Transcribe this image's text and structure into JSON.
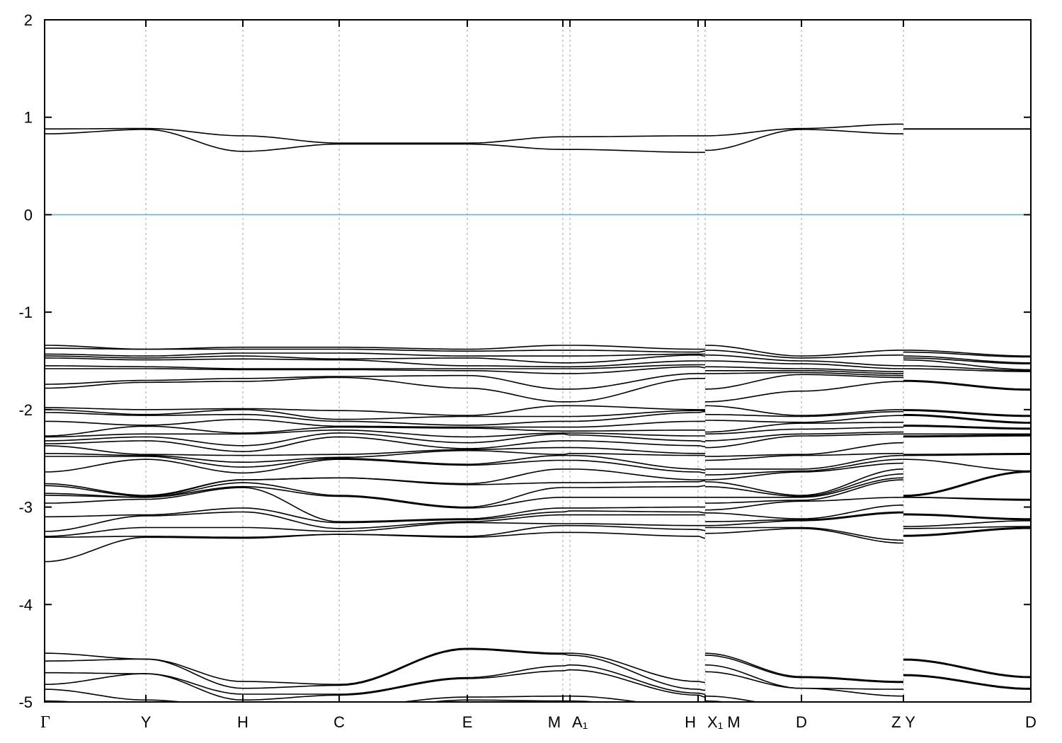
{
  "chart_data": {
    "type": "line",
    "title": "",
    "xlabel": "",
    "ylabel": "",
    "ylim": [
      -5,
      2
    ],
    "yticks": [
      2,
      1,
      0,
      -1,
      -2,
      -3,
      -4,
      -5
    ],
    "grid": "vertical dashed lines at high-symmetry points",
    "fermi_level": 0,
    "fermi_color": "#56b4e9",
    "band_color": "#000000",
    "kpoints": [
      {
        "label": "Γ",
        "k": 0.0
      },
      {
        "label": "Y",
        "k": 0.1027
      },
      {
        "label": "H",
        "k": 0.201
      },
      {
        "label": "C",
        "k": 0.2987
      },
      {
        "label": "E",
        "k": 0.4286
      },
      {
        "label": "M",
        "k": 0.5255
      },
      {
        "label": "A₁",
        "k": 0.5327
      },
      {
        "label": "H",
        "k": 0.6626
      },
      {
        "label": "X₁ M",
        "k": 0.6698
      },
      {
        "label": "D",
        "k": 0.7674
      },
      {
        "label": "Z Y",
        "k": 0.8708
      },
      {
        "label": "D",
        "k": 1.0
      }
    ],
    "segments": [
      {
        "nodes": [
          0,
          1,
          2,
          3,
          4,
          5,
          6,
          7,
          8
        ],
        "energies": [
          [
            0.88,
            0.83,
            -1.34,
            -1.37,
            -1.43,
            -1.45,
            -1.47,
            -1.55,
            -1.58,
            -1.74,
            -1.78,
            -1.98,
            -2.0,
            -2.03,
            -2.12,
            -2.27,
            -2.28,
            -2.32,
            -2.35,
            -2.37,
            -2.45,
            -2.48,
            -2.64,
            -2.76,
            -2.78,
            -2.86,
            -2.88,
            -2.96,
            -3.1,
            -3.25,
            -3.3,
            -3.31,
            -3.56,
            -4.5,
            -4.58,
            -4.7,
            -4.82,
            -4.87,
            -4.99
          ],
          [
            0.885,
            0.875,
            -1.38,
            -1.38,
            -1.45,
            -1.47,
            -1.49,
            -1.56,
            -1.58,
            -1.7,
            -1.72,
            -2.0,
            -2.05,
            -2.06,
            -2.16,
            -2.17,
            -2.25,
            -2.28,
            -2.32,
            -2.46,
            -2.47,
            -2.48,
            -2.51,
            -2.88,
            -2.89,
            -2.9,
            -2.9,
            -2.92,
            -3.08,
            -3.09,
            -3.21,
            -3.3,
            -3.31,
            -4.56,
            -4.56,
            -4.71,
            -4.71,
            -4.98,
            -5.05
          ],
          [
            0.81,
            0.65,
            -1.36,
            -1.38,
            -1.42,
            -1.45,
            -1.48,
            -1.58,
            -1.59,
            -1.68,
            -1.71,
            -1.99,
            -2.0,
            -2.05,
            -2.1,
            -2.24,
            -2.25,
            -2.37,
            -2.43,
            -2.47,
            -2.54,
            -2.59,
            -2.65,
            -2.72,
            -2.72,
            -2.75,
            -2.79,
            -2.8,
            -3.01,
            -3.05,
            -3.21,
            -3.31,
            -3.32,
            -4.79,
            -4.86,
            -4.92,
            -4.98,
            -5.05,
            -5.1
          ],
          [
            0.735,
            0.725,
            -1.36,
            -1.38,
            -1.42,
            -1.48,
            -1.49,
            -1.58,
            -1.59,
            -1.66,
            -1.67,
            -2.01,
            -2.1,
            -2.12,
            -2.17,
            -2.18,
            -2.21,
            -2.24,
            -2.28,
            -2.46,
            -2.49,
            -2.5,
            -2.51,
            -2.7,
            -2.7,
            -2.88,
            -2.89,
            -3.15,
            -3.16,
            -3.22,
            -3.25,
            -3.28,
            -3.28,
            -4.82,
            -4.83,
            -4.92,
            -4.93,
            -5.05,
            -5.1
          ],
          [
            0.735,
            0.725,
            -1.38,
            -1.4,
            -1.45,
            -1.47,
            -1.55,
            -1.58,
            -1.6,
            -1.65,
            -1.78,
            -2.06,
            -2.07,
            -2.16,
            -2.18,
            -2.19,
            -2.28,
            -2.34,
            -2.4,
            -2.41,
            -2.42,
            -2.56,
            -2.57,
            -2.76,
            -2.77,
            -3.0,
            -3.01,
            -3.12,
            -3.13,
            -3.15,
            -3.16,
            -3.3,
            -3.31,
            -4.45,
            -4.46,
            -4.75,
            -4.76,
            -4.95,
            -4.98
          ],
          [
            0.8,
            0.67,
            -1.34,
            -1.39,
            -1.45,
            -1.52,
            -1.56,
            -1.58,
            -1.63,
            -1.79,
            -1.92,
            -1.96,
            -2.07,
            -2.12,
            -2.18,
            -2.22,
            -2.24,
            -2.25,
            -2.32,
            -2.39,
            -2.46,
            -2.47,
            -2.52,
            -2.61,
            -2.75,
            -2.8,
            -2.9,
            -3.01,
            -3.05,
            -3.08,
            -3.17,
            -3.19,
            -3.26,
            -4.5,
            -4.51,
            -4.63,
            -4.68,
            -4.94,
            -4.99
          ],
          [
            0.8,
            0.67,
            -1.34,
            -1.39,
            -1.45,
            -1.52,
            -1.56,
            -1.58,
            -1.63,
            -1.79,
            -1.92,
            -1.96,
            -2.07,
            -2.12,
            -2.18,
            -2.22,
            -2.24,
            -2.26,
            -2.32,
            -2.39,
            -2.45,
            -2.47,
            -2.52,
            -2.61,
            -2.75,
            -2.8,
            -2.9,
            -3.01,
            -3.04,
            -3.08,
            -3.17,
            -3.19,
            -3.26,
            -4.5,
            -4.52,
            -4.62,
            -4.67,
            -4.94,
            -4.99
          ],
          [
            0.81,
            0.64,
            -1.38,
            -1.41,
            -1.43,
            -1.44,
            -1.5,
            -1.54,
            -1.56,
            -1.63,
            -1.68,
            -2.0,
            -2.01,
            -2.03,
            -2.12,
            -2.21,
            -2.27,
            -2.32,
            -2.37,
            -2.45,
            -2.47,
            -2.61,
            -2.64,
            -2.72,
            -2.74,
            -2.79,
            -2.9,
            -3.0,
            -3.05,
            -3.08,
            -3.19,
            -3.23,
            -3.3,
            -4.79,
            -4.87,
            -4.91,
            -4.93,
            -5.05,
            -5.1
          ],
          [
            0.81,
            0.64,
            -1.38,
            -1.4,
            -1.43,
            -1.45,
            -1.5,
            -1.54,
            -1.57,
            -1.63,
            -1.68,
            -2.0,
            -2.01,
            -2.02,
            -2.12,
            -2.21,
            -2.27,
            -2.33,
            -2.38,
            -2.45,
            -2.47,
            -2.62,
            -2.65,
            -2.72,
            -2.73,
            -2.78,
            -2.9,
            -3.0,
            -3.06,
            -3.08,
            -3.19,
            -3.24,
            -3.32,
            -4.8,
            -4.88,
            -4.92,
            -4.95,
            -5.05,
            -5.1
          ]
        ]
      },
      {
        "nodes": [
          8,
          9,
          10
        ],
        "energies": [
          [
            0.81,
            0.66,
            -1.34,
            -1.39,
            -1.44,
            -1.5,
            -1.56,
            -1.6,
            -1.63,
            -1.79,
            -1.92,
            -1.96,
            -2.05,
            -2.11,
            -2.23,
            -2.25,
            -2.32,
            -2.39,
            -2.48,
            -2.52,
            -2.61,
            -2.67,
            -2.72,
            -2.74,
            -2.79,
            -2.9,
            -2.96,
            -3.03,
            -3.06,
            -3.15,
            -3.19,
            -3.21,
            -3.27,
            -4.5,
            -4.52,
            -4.62,
            -4.69,
            -4.94,
            -4.99
          ],
          [
            0.885,
            0.875,
            -1.45,
            -1.47,
            -1.5,
            -1.53,
            -1.58,
            -1.6,
            -1.62,
            -1.64,
            -1.81,
            -2.06,
            -2.07,
            -2.13,
            -2.14,
            -2.2,
            -2.25,
            -2.27,
            -2.46,
            -2.47,
            -2.61,
            -2.63,
            -2.64,
            -2.88,
            -2.89,
            -2.9,
            -2.93,
            -2.94,
            -3.12,
            -3.13,
            -3.14,
            -3.21,
            -3.22,
            -4.74,
            -4.75,
            -4.86,
            -4.86,
            -5.05,
            -5.1
          ],
          [
            0.93,
            0.83,
            -1.39,
            -1.44,
            -1.55,
            -1.58,
            -1.61,
            -1.63,
            -1.65,
            -1.67,
            -1.71,
            -2.0,
            -2.02,
            -2.06,
            -2.13,
            -2.18,
            -2.23,
            -2.25,
            -2.34,
            -2.45,
            -2.47,
            -2.51,
            -2.55,
            -2.61,
            -2.66,
            -2.7,
            -2.72,
            -2.9,
            -2.98,
            -3.05,
            -3.06,
            -3.34,
            -3.37,
            -4.79,
            -4.8,
            -4.87,
            -4.94,
            -5.0,
            -5.05
          ]
        ]
      },
      {
        "nodes": [
          10,
          11
        ],
        "energies": [
          [
            0.881,
            0.879,
            -1.39,
            -1.41,
            -1.45,
            -1.47,
            -1.49,
            -1.55,
            -1.58,
            -1.7,
            -1.71,
            -2.0,
            -2.01,
            -2.05,
            -2.06,
            -2.16,
            -2.17,
            -2.25,
            -2.27,
            -2.28,
            -2.46,
            -2.47,
            -2.51,
            -2.88,
            -2.89,
            -2.9,
            -2.9,
            -3.07,
            -3.08,
            -3.2,
            -3.22,
            -3.29,
            -3.3,
            -4.56,
            -4.57,
            -4.72,
            -4.73,
            -5.0,
            -5.05
          ],
          [
            0.881,
            0.879,
            -1.45,
            -1.46,
            -1.52,
            -1.53,
            -1.59,
            -1.6,
            -1.61,
            -1.79,
            -1.8,
            -2.06,
            -2.07,
            -2.13,
            -2.14,
            -2.19,
            -2.2,
            -2.25,
            -2.26,
            -2.27,
            -2.45,
            -2.46,
            -2.63,
            -2.63,
            -2.64,
            -2.92,
            -2.93,
            -3.12,
            -3.13,
            -3.14,
            -3.2,
            -3.21,
            -3.22,
            -4.74,
            -4.75,
            -4.86,
            -4.87,
            -5.05,
            -5.1
          ]
        ]
      }
    ]
  }
}
